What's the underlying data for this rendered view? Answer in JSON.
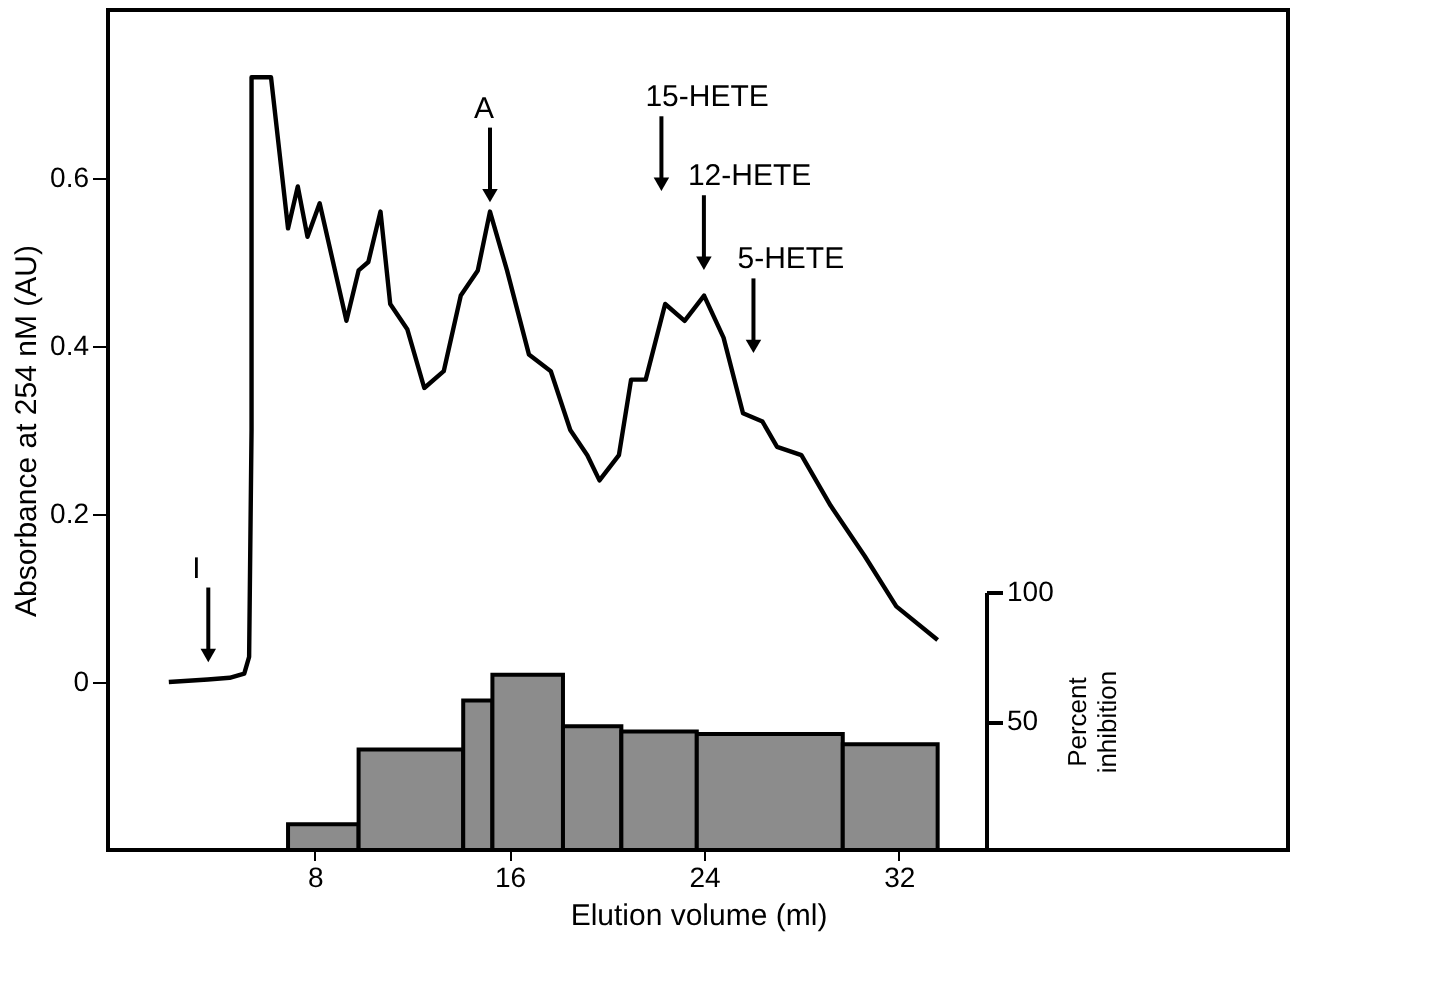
{
  "chart_data": {
    "type": "line",
    "xlabel": "Elution volume (ml)",
    "ylabel": "Absorbance at 254 nM (AU)",
    "y2label": "Percent inhibition",
    "xlim": [
      -0.5,
      48
    ],
    "xticks": [
      8,
      16,
      24,
      32
    ],
    "ylim": [
      -0.2,
      0.8
    ],
    "yticks": [
      0,
      0.2,
      0.4,
      0.6
    ],
    "y2lim": [
      0,
      100
    ],
    "y2ticks": [
      50,
      100
    ],
    "grid": false,
    "marker": "none",
    "line_style": "solid",
    "series": [
      {
        "color": "#000000",
        "x": [
          2.0,
          3.6,
          4.5,
          5.1,
          5.3,
          5.4,
          5.4,
          6.2,
          6.9,
          7.3,
          7.7,
          8.2,
          9.3,
          9.8,
          10.2,
          10.7,
          11.1,
          11.8,
          12.5,
          13.3,
          14.0,
          14.7,
          15.2,
          15.9,
          16.8,
          17.7,
          18.5,
          19.2,
          19.7,
          20.5,
          21.0,
          21.6,
          22.4,
          23.2,
          24.0,
          24.8,
          25.6,
          26.4,
          27.0,
          28.0,
          29.2,
          30.6,
          31.9,
          33.6
        ],
        "values": [
          0.0,
          0.003,
          0.005,
          0.01,
          0.03,
          0.3,
          0.72,
          0.72,
          0.54,
          0.59,
          0.53,
          0.57,
          0.43,
          0.49,
          0.5,
          0.56,
          0.45,
          0.42,
          0.35,
          0.37,
          0.46,
          0.49,
          0.56,
          0.49,
          0.39,
          0.37,
          0.3,
          0.27,
          0.24,
          0.27,
          0.36,
          0.36,
          0.45,
          0.43,
          0.46,
          0.41,
          0.32,
          0.31,
          0.28,
          0.27,
          0.21,
          0.15,
          0.09,
          0.05
        ]
      },
      {
        "type": "histogram",
        "axis": "y2",
        "color": "#8c8c8c",
        "bins": [
          6.9,
          9.8,
          14.1,
          15.3,
          18.2,
          20.6,
          23.7,
          29.7,
          33.6
        ],
        "values": [
          10,
          39,
          58,
          68,
          48,
          46,
          45,
          41
        ]
      }
    ],
    "annotations": [
      "I",
      {
        "text": "A",
        "x": 15.2,
        "y": 0.56
      },
      "15-HETE",
      "12-HETE",
      "5-HETE"
    ]
  }
}
